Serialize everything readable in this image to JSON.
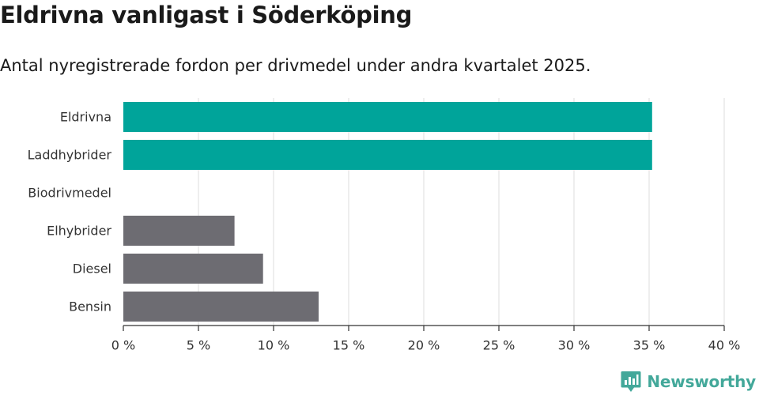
{
  "title": "Eldrivna vanligast i Söderköping",
  "subtitle": "Antal nyregistrerade fordon per drivmedel under andra kvartalet 2025.",
  "brand": {
    "name": "Newsworthy",
    "color": "#43a89a"
  },
  "colors": {
    "highlight": "#00a49a",
    "default": "#6d6c72",
    "grid": "#dcdcdc",
    "axis": "#333333"
  },
  "chart_data": {
    "type": "bar",
    "orientation": "horizontal",
    "categories": [
      "Eldrivna",
      "Laddhybrider",
      "Biodrivmedel",
      "Elhybrider",
      "Diesel",
      "Bensin"
    ],
    "values": [
      35.2,
      35.2,
      0,
      7.4,
      9.3,
      13.0
    ],
    "highlighted": [
      true,
      true,
      false,
      false,
      false,
      false
    ],
    "xlim": [
      0,
      40
    ],
    "xticks": [
      0,
      5,
      10,
      15,
      20,
      25,
      30,
      35,
      40
    ],
    "xtick_labels": [
      "0 %",
      "5 %",
      "10 %",
      "15 %",
      "20 %",
      "25 %",
      "30 %",
      "35 %",
      "40 %"
    ],
    "grid": true,
    "legend": "none",
    "xlabel": "",
    "ylabel": ""
  }
}
